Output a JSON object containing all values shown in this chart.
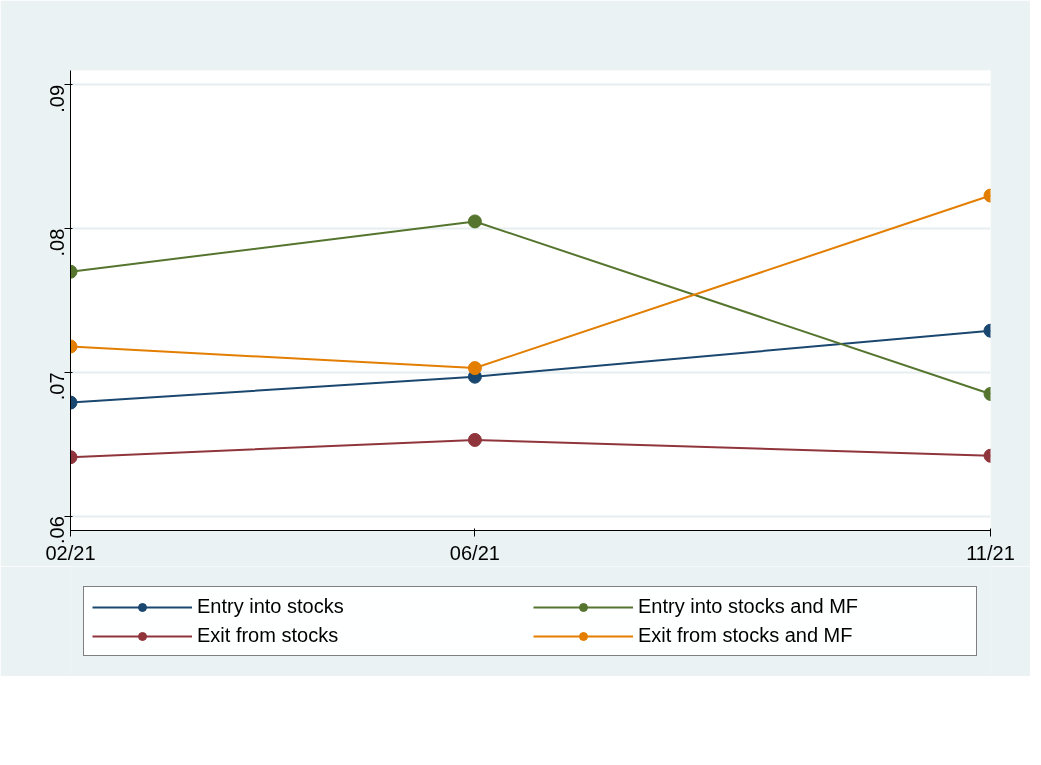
{
  "chart_data": {
    "type": "line",
    "x": [
      "2021-02",
      "2021-06",
      "2021-11"
    ],
    "xlim": [
      "2021-02",
      "2021-11"
    ],
    "xticks": [
      {
        "value": "2021-02",
        "label": "02/21"
      },
      {
        "value": "2021-06",
        "label": "06/21"
      },
      {
        "value": "2021-11",
        "label": "11/21"
      }
    ],
    "ylim": [
      0.059,
      0.091
    ],
    "yticks": [
      {
        "value": 0.06,
        "label": ".06"
      },
      {
        "value": 0.07,
        "label": ".07"
      },
      {
        "value": 0.08,
        "label": ".08"
      },
      {
        "value": 0.09,
        "label": ".09"
      }
    ],
    "grid": "y",
    "legend": "bottom",
    "marker": "circle",
    "line_style": "solid",
    "series": [
      {
        "name": "Entry into stocks",
        "color": "#1a476f",
        "values": [
          0.0679,
          0.0697,
          0.0729
        ]
      },
      {
        "name": "Exit from stocks",
        "color": "#90353b",
        "values": [
          0.0641,
          0.0653,
          0.0642
        ]
      },
      {
        "name": "Entry into stocks and MF",
        "color": "#55752f",
        "values": [
          0.077,
          0.0805,
          0.0685
        ]
      },
      {
        "name": "Exit from stocks and MF",
        "color": "#e37e00",
        "values": [
          0.0718,
          0.0703,
          0.0823
        ]
      }
    ]
  }
}
